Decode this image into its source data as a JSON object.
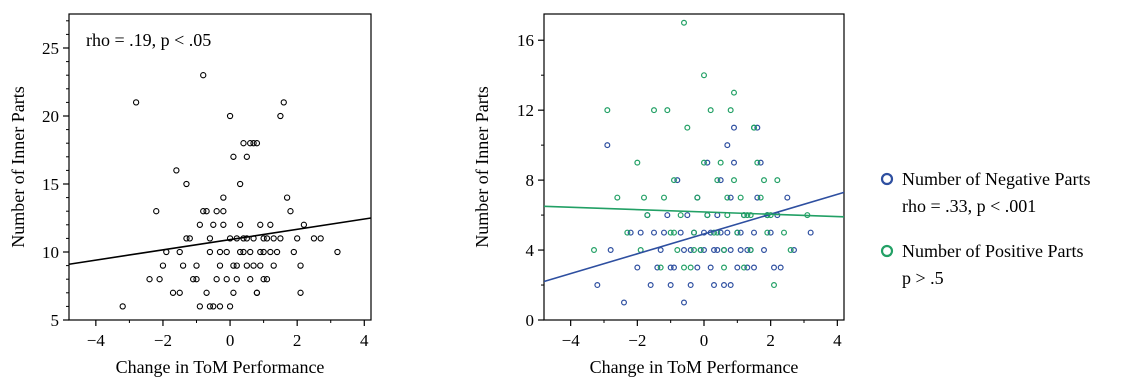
{
  "chart_data": [
    {
      "type": "scatter",
      "xlabel": "Change in ToM Performance",
      "ylabel": "Number of Inner Parts",
      "xlim": [
        -4.8,
        4.2
      ],
      "ylim": [
        5,
        27.5
      ],
      "xticks": [
        -4,
        -2,
        0,
        2,
        4
      ],
      "yticks": [
        5,
        10,
        15,
        20,
        25
      ],
      "annotation": "rho = .19, p < .05",
      "point_color": "#000000",
      "fit_line": {
        "x": [
          -4.8,
          4.2
        ],
        "y": [
          9.1,
          12.5
        ]
      },
      "series": [
        {
          "x": [
            -3.2,
            -2.8,
            -2.4,
            -2.2,
            -2.1,
            -2.0,
            -1.9,
            -1.7,
            -1.6,
            -1.5,
            -1.5,
            -1.3,
            -1.3,
            -1.2,
            -1.1,
            -1.0,
            -1.0,
            -0.9,
            -0.8,
            -0.8,
            -0.7,
            -0.7,
            -0.6,
            -0.6,
            -0.6,
            -0.5,
            -0.5,
            -0.4,
            -0.4,
            -0.3,
            -0.3,
            -0.3,
            -0.2,
            -0.2,
            -0.1,
            -0.1,
            0.0,
            0.0,
            0.0,
            0.1,
            0.1,
            0.1,
            0.2,
            0.2,
            0.3,
            0.3,
            0.3,
            0.4,
            0.4,
            0.5,
            0.5,
            0.5,
            0.6,
            0.6,
            0.6,
            0.7,
            0.7,
            0.7,
            0.8,
            0.8,
            0.9,
            0.9,
            0.9,
            1.0,
            1.0,
            1.0,
            1.1,
            1.1,
            1.2,
            1.2,
            1.3,
            1.3,
            1.4,
            1.5,
            1.6,
            1.7,
            1.8,
            1.9,
            2.0,
            2.1,
            2.2,
            2.5,
            2.7,
            3.2,
            -1.4,
            -0.9,
            0.2,
            1.5,
            2.1,
            0.8,
            -0.2,
            0.4
          ],
          "y": [
            6,
            21,
            8,
            13,
            8,
            9,
            10,
            7,
            16,
            10,
            7,
            11,
            15,
            11,
            8,
            9,
            8,
            6,
            13,
            23,
            7,
            13,
            6,
            11,
            10,
            12,
            6,
            8,
            13,
            9,
            10,
            6,
            13,
            12,
            10,
            8,
            20,
            11,
            6,
            17,
            9,
            7,
            11,
            8,
            10,
            12,
            15,
            11,
            18,
            9,
            11,
            17,
            8,
            10,
            18,
            9,
            11,
            18,
            7,
            18,
            9,
            12,
            10,
            10,
            8,
            11,
            8,
            11,
            12,
            10,
            9,
            11,
            10,
            20,
            21,
            14,
            13,
            10,
            11,
            7,
            12,
            11,
            11,
            10,
            9,
            12,
            9,
            11,
            9,
            7,
            14,
            10
          ]
        }
      ]
    },
    {
      "type": "scatter",
      "xlabel": "Change in ToM Performance",
      "ylabel": "Number of Inner Parts",
      "xlim": [
        -4.8,
        4.2
      ],
      "ylim": [
        0,
        17.5
      ],
      "xticks": [
        -4,
        -2,
        0,
        2,
        4
      ],
      "yticks": [
        0,
        4,
        8,
        12,
        16
      ],
      "series": [
        {
          "name": "Number of Negative Parts",
          "annotation": "rho = .33, p < .001",
          "color": "#2e4fa0",
          "fit_line": {
            "x": [
              -4.8,
              4.2
            ],
            "y": [
              2.2,
              7.3
            ]
          },
          "x": [
            -3.2,
            -2.9,
            -2.8,
            -2.4,
            -2.2,
            -2.0,
            -1.9,
            -1.7,
            -1.6,
            -1.5,
            -1.4,
            -1.3,
            -1.2,
            -1.1,
            -1.0,
            -0.9,
            -0.8,
            -0.7,
            -0.6,
            -0.5,
            -0.4,
            -0.3,
            -0.2,
            -0.1,
            0.0,
            0.1,
            0.2,
            0.3,
            0.4,
            0.5,
            0.6,
            0.7,
            0.8,
            0.9,
            1.0,
            1.1,
            1.2,
            1.3,
            1.4,
            1.5,
            1.6,
            1.7,
            1.8,
            1.9,
            2.0,
            2.1,
            2.2,
            2.5,
            2.7,
            3.2,
            -0.6,
            -0.2,
            0.3,
            0.7,
            0.8,
            1.0,
            1.3,
            0.5,
            0.1,
            -1.0,
            0.9,
            1.1,
            0.6,
            -0.4,
            1.6,
            1.9,
            2.3,
            0.0,
            0.4,
            1.5,
            0.2,
            0.8
          ],
          "y": [
            2,
            10,
            4,
            1,
            5,
            3,
            5,
            6,
            2,
            5,
            3,
            4,
            5,
            6,
            2,
            3,
            8,
            5,
            4,
            6,
            2,
            5,
            7,
            4,
            4,
            9,
            3,
            4,
            6,
            5,
            4,
            10,
            2,
            11,
            5,
            4,
            6,
            3,
            4,
            5,
            11,
            9,
            4,
            6,
            5,
            3,
            6,
            7,
            4,
            5,
            1,
            3,
            2,
            5,
            4,
            3,
            4,
            8,
            6,
            3,
            9,
            5,
            2,
            4,
            7,
            6,
            3,
            5,
            4,
            3,
            5,
            7
          ]
        },
        {
          "name": "Number of Positive Parts",
          "annotation": "p > .5",
          "color": "#22a065",
          "fit_line": {
            "x": [
              -4.8,
              4.2
            ],
            "y": [
              6.5,
              5.9
            ]
          },
          "x": [
            -3.3,
            -2.9,
            -2.6,
            -2.3,
            -2.0,
            -1.9,
            -1.7,
            -1.5,
            -1.3,
            -1.2,
            -1.1,
            -1.0,
            -0.9,
            -0.8,
            -0.7,
            -0.6,
            -0.5,
            -0.4,
            -0.3,
            -0.2,
            -0.1,
            0.0,
            0.1,
            0.2,
            0.3,
            0.4,
            0.5,
            0.6,
            0.7,
            0.8,
            0.9,
            1.0,
            1.1,
            1.2,
            1.3,
            1.4,
            1.5,
            1.6,
            1.7,
            1.8,
            1.9,
            2.0,
            2.1,
            2.4,
            2.6,
            3.1,
            -0.6,
            0.0,
            0.9,
            1.5,
            -1.8,
            0.4,
            1.2,
            -0.3,
            0.7,
            1.9,
            2.2,
            -0.9,
            0.6,
            1.4
          ],
          "y": [
            4,
            12,
            7,
            5,
            9,
            4,
            6,
            12,
            3,
            7,
            12,
            5,
            8,
            4,
            6,
            17,
            11,
            3,
            5,
            7,
            4,
            14,
            6,
            12,
            5,
            8,
            9,
            4,
            6,
            12,
            13,
            5,
            7,
            3,
            6,
            4,
            11,
            9,
            7,
            8,
            5,
            6,
            2,
            5,
            4,
            6,
            3,
            9,
            8,
            11,
            7,
            5,
            6,
            4,
            7,
            6,
            8,
            5,
            3,
            6
          ]
        }
      ]
    }
  ]
}
